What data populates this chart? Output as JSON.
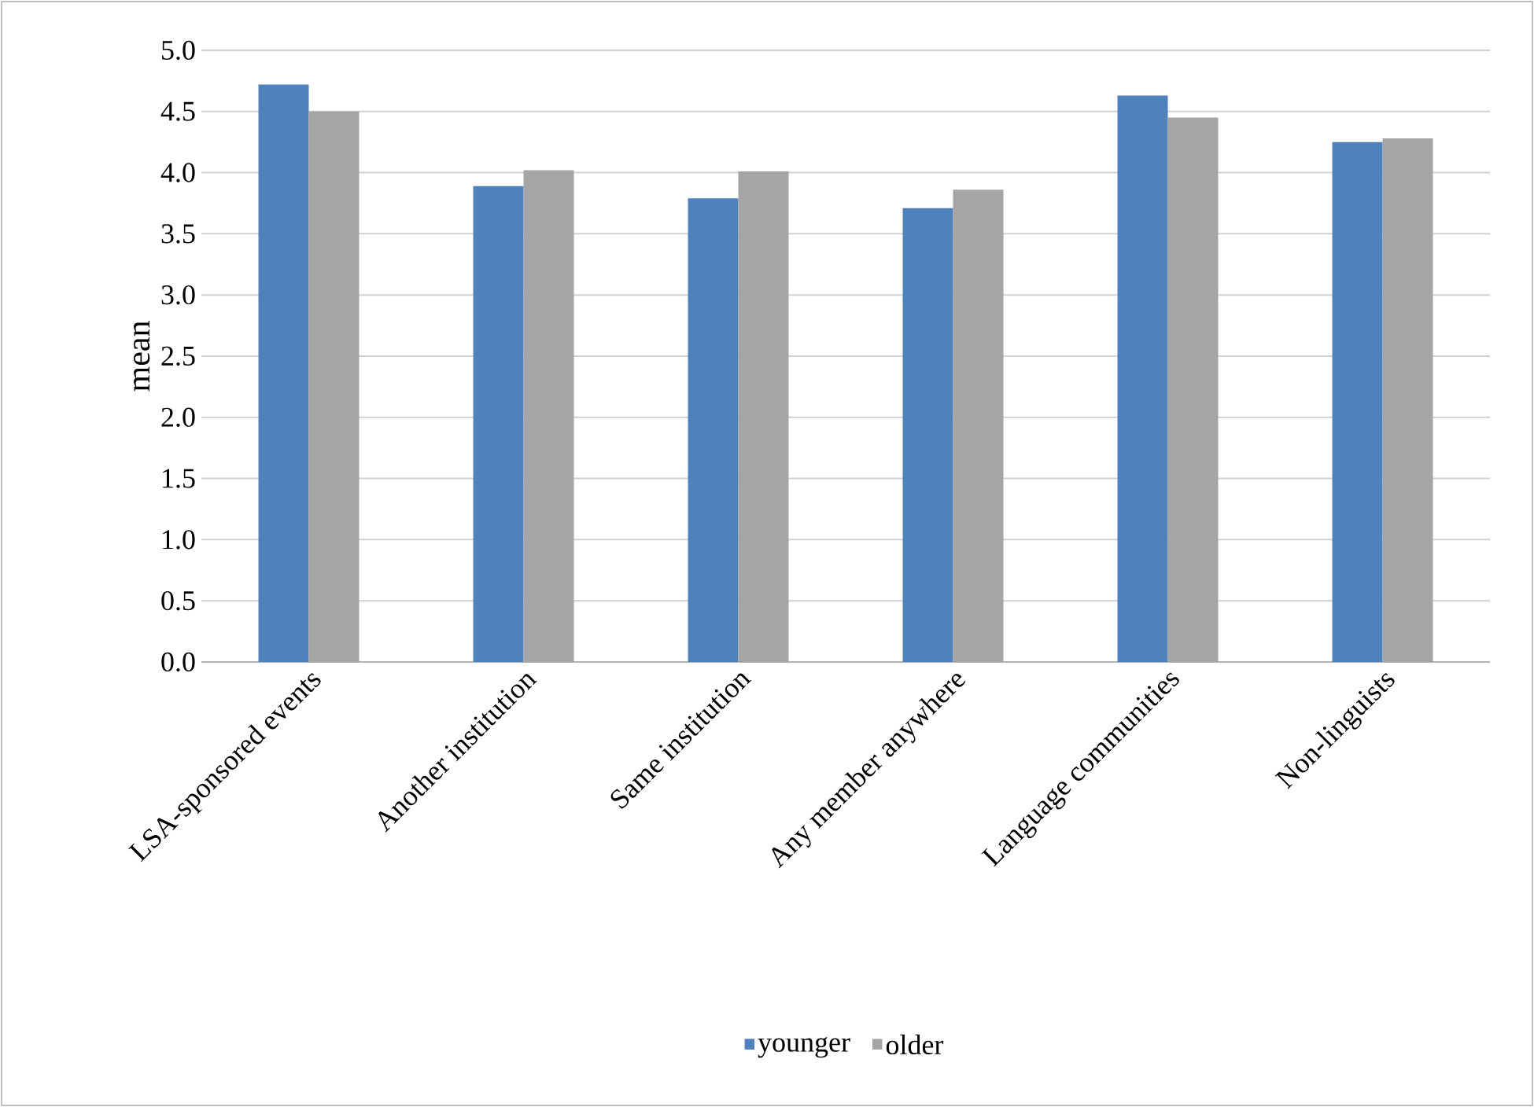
{
  "chart_data": {
    "type": "bar",
    "ylabel": "mean",
    "categories": [
      "LSA-sponsored events",
      "Another institution",
      "Same institution",
      "Any member anywhere",
      "Language communities",
      "Non-linguists"
    ],
    "series": [
      {
        "name": "younger",
        "color": "#4f81bd",
        "values": [
          4.72,
          3.89,
          3.79,
          3.71,
          4.63,
          4.25
        ]
      },
      {
        "name": "older",
        "color": "#a5a5a5",
        "values": [
          4.5,
          4.02,
          4.01,
          3.86,
          4.45,
          4.28
        ]
      }
    ],
    "ylim": [
      0,
      5
    ],
    "yticks": [
      {
        "value": 0,
        "label": "0.0"
      },
      {
        "value": 0.5,
        "label": "0.5"
      },
      {
        "value": 1,
        "label": "1.0"
      },
      {
        "value": 1.5,
        "label": "1.5"
      },
      {
        "value": 2,
        "label": "2.0"
      },
      {
        "value": 2.5,
        "label": "2.5"
      },
      {
        "value": 3,
        "label": "3.0"
      },
      {
        "value": 3.5,
        "label": "3.5"
      },
      {
        "value": 4,
        "label": "4.0"
      },
      {
        "value": 4.5,
        "label": "4.5"
      },
      {
        "value": 5,
        "label": "5.0"
      }
    ],
    "grid": "y",
    "legend": "bottom"
  }
}
